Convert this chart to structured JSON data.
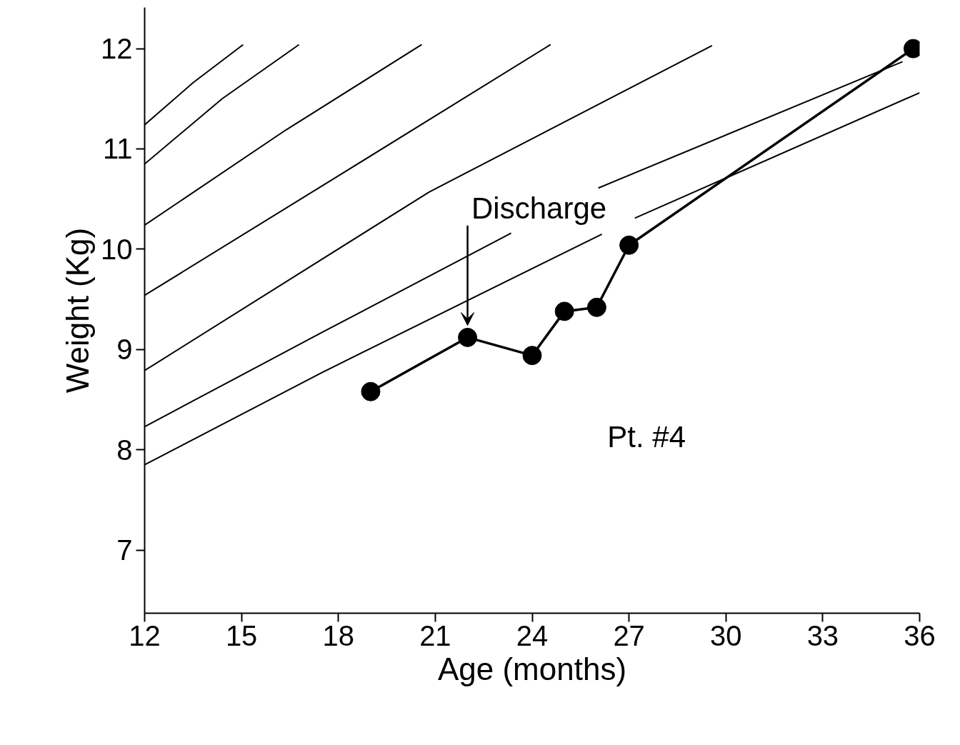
{
  "chart_data": {
    "type": "line",
    "xlabel": "Age (months)",
    "ylabel": "Weight (Kg)",
    "xlim": [
      12,
      36
    ],
    "ylim": [
      6.37,
      12.41
    ],
    "xticks": [
      12,
      15,
      18,
      21,
      24,
      27,
      30,
      33,
      36
    ],
    "yticks": [
      7,
      8,
      9,
      10,
      11,
      12
    ],
    "grid": false,
    "line_style": "solid",
    "annotations": [
      {
        "text": "Discharge",
        "x": 22,
        "y": 9.24
      }
    ],
    "series": [
      {
        "color": "#000000",
        "marker": "none",
        "x": [
          12,
          13.5,
          15.05
        ],
        "values": [
          11.24,
          11.66,
          12.04
        ]
      },
      {
        "color": "#000000",
        "marker": "none",
        "x": [
          12,
          14.4,
          16.78
        ],
        "values": [
          10.85,
          11.5,
          12.04
        ]
      },
      {
        "color": "#000000",
        "marker": "none",
        "x": [
          12,
          16.38,
          20.58
        ],
        "values": [
          10.24,
          11.19,
          12.04
        ]
      },
      {
        "color": "#000000",
        "marker": "none",
        "x": [
          12,
          17.49,
          24.57
        ],
        "values": [
          9.54,
          10.63,
          12.04
        ]
      },
      {
        "color": "#000000",
        "marker": "none",
        "x": [
          12,
          20.81,
          29.57
        ],
        "values": [
          8.79,
          10.57,
          12.03
        ]
      },
      {
        "color": "#000000",
        "marker": "none",
        "x": [
          12,
          17.49,
          23.35,
          24.7,
          26.05,
          35.47
        ],
        "values": [
          8.23,
          9.17,
          10.16,
          null,
          10.61,
          11.87
        ]
      },
      {
        "color": "#000000",
        "marker": "none",
        "x": [
          12,
          17.49,
          26.16,
          26.7,
          27.18,
          36
        ],
        "values": [
          7.85,
          8.77,
          10.15,
          null,
          10.31,
          11.56
        ]
      },
      {
        "name": "Pt. #4",
        "color": "#000000",
        "marker": "circle",
        "x": [
          19,
          22,
          24,
          25,
          26,
          27,
          35.8
        ],
        "values": [
          8.58,
          9.12,
          8.94,
          9.38,
          9.42,
          10.04,
          12.0
        ]
      }
    ]
  }
}
